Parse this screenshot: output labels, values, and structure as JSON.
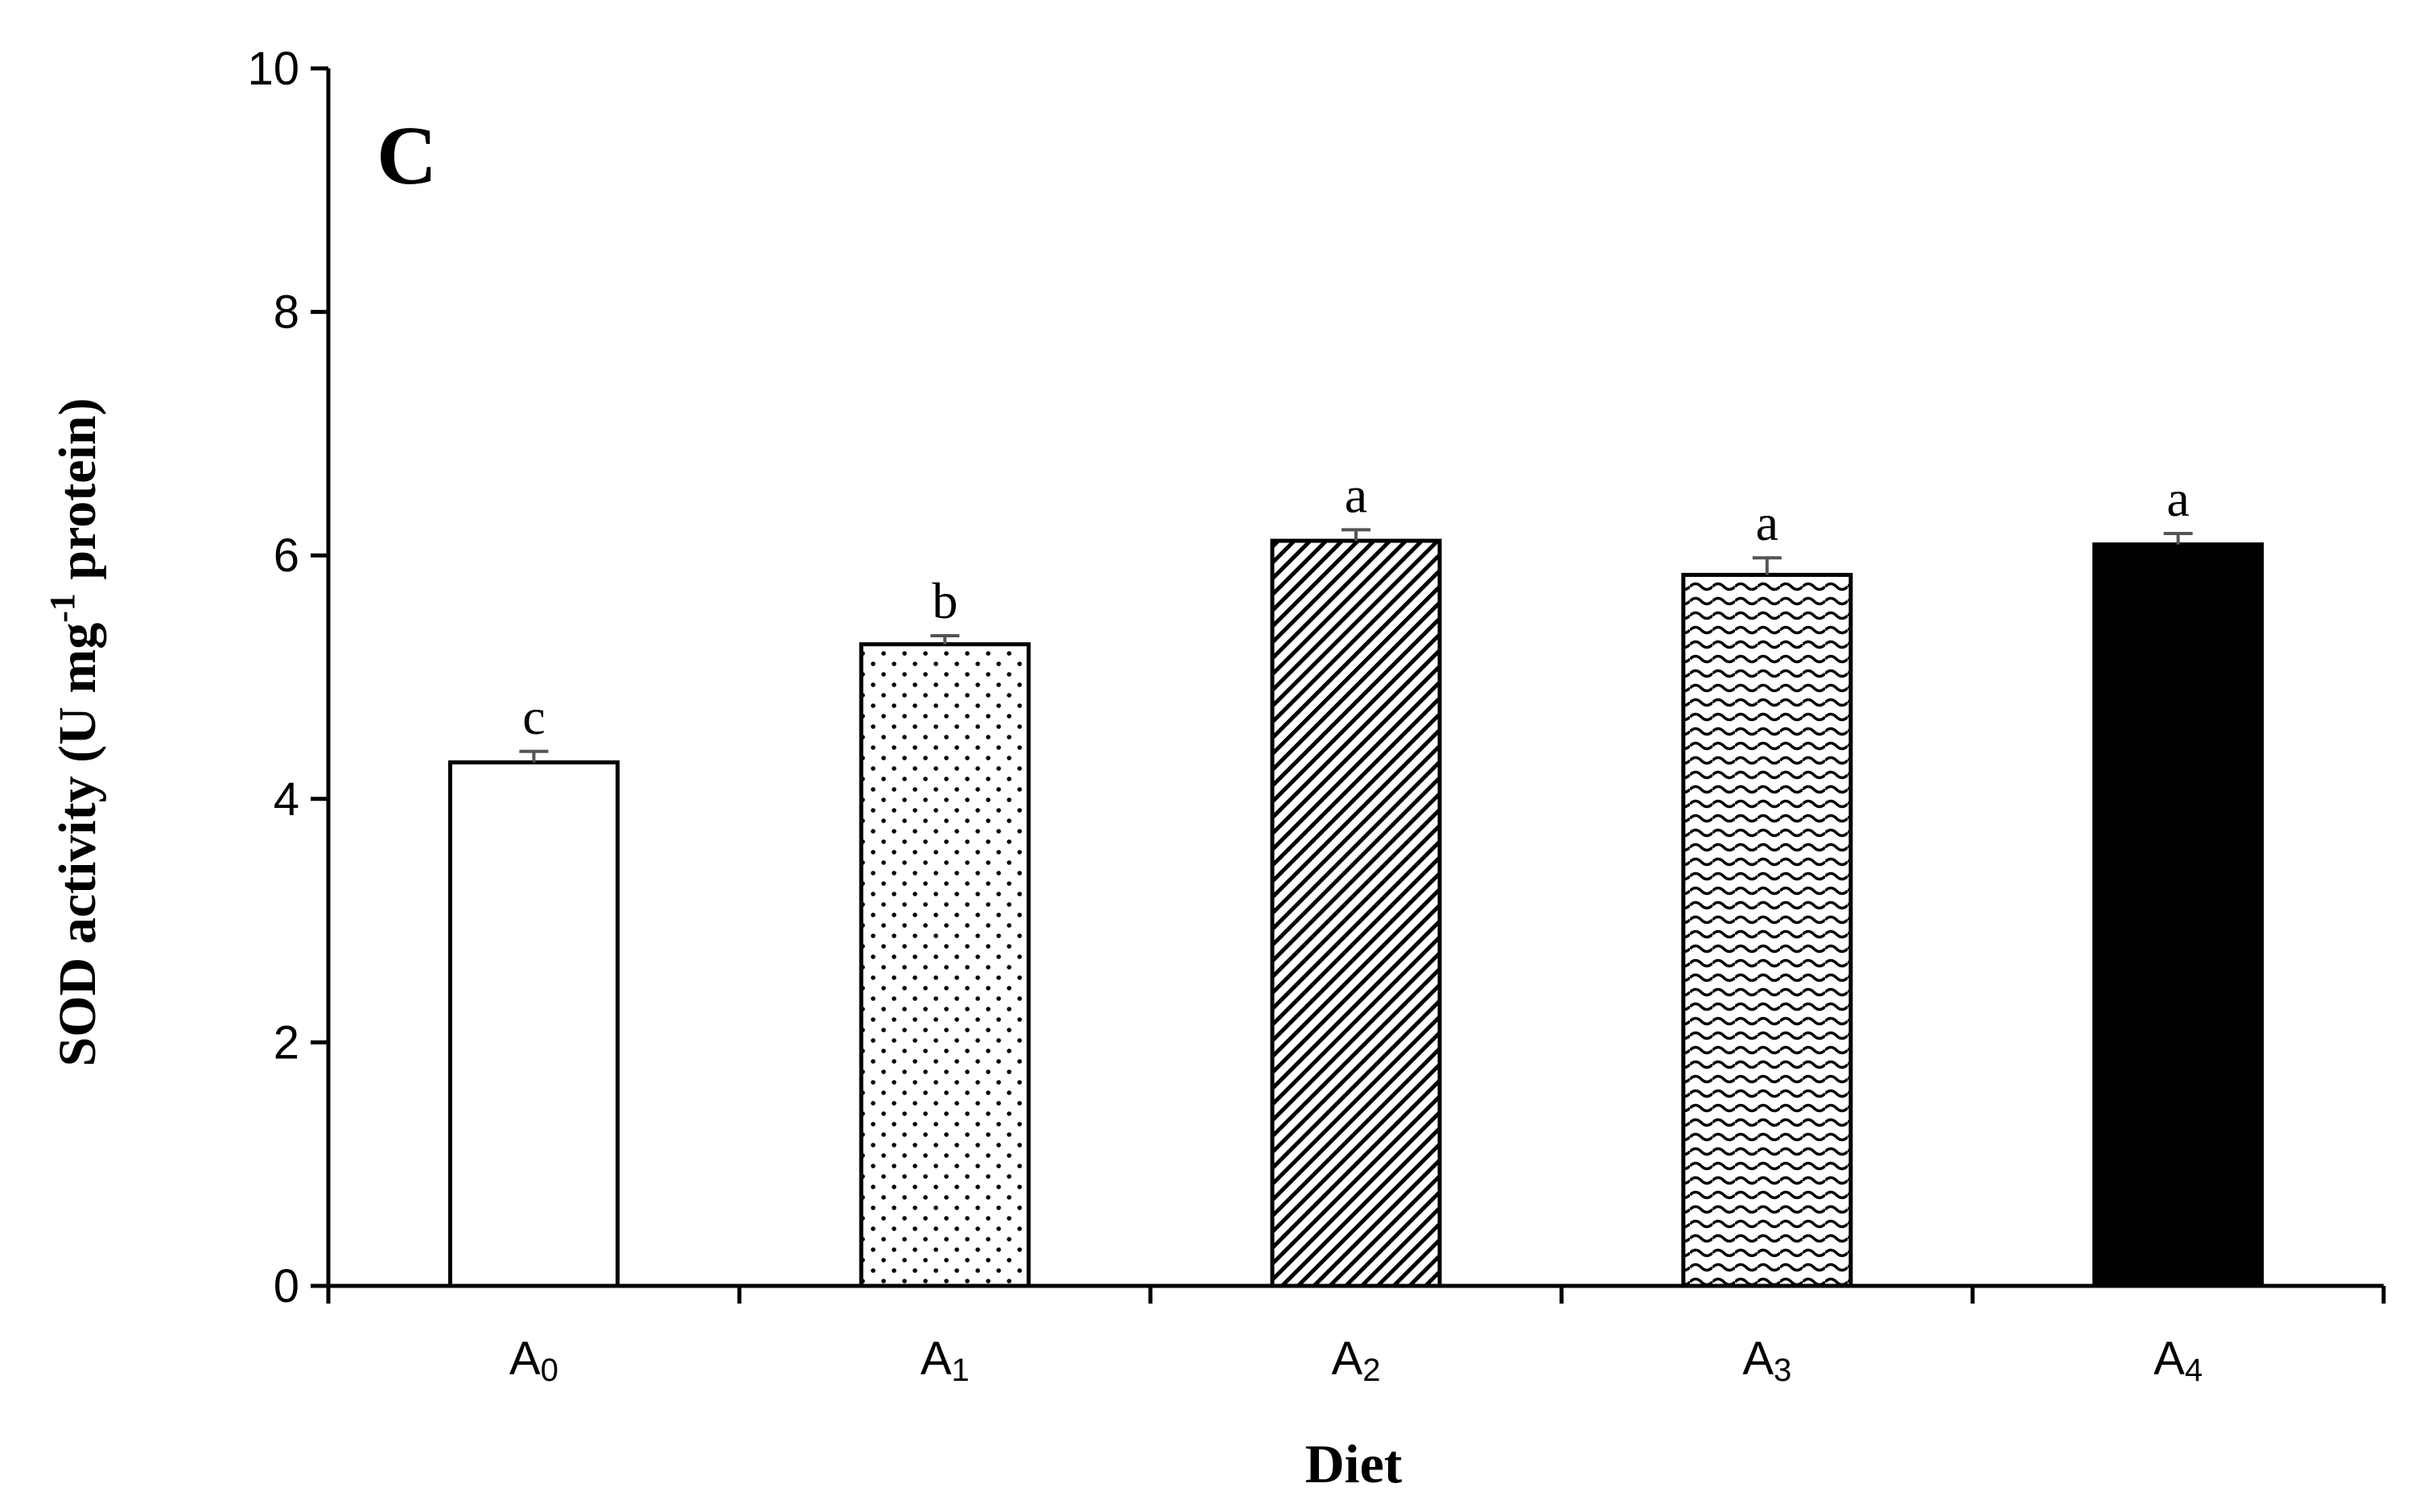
{
  "chart_data": {
    "type": "bar",
    "panel_label": "C",
    "title": "",
    "xlabel": "Diet",
    "ylabel_main": "SOD activity (U mg",
    "ylabel_sup": "-1",
    "ylabel_end": " protein)",
    "ylim": [
      0,
      10
    ],
    "yticks": [
      0,
      2,
      4,
      6,
      8,
      10
    ],
    "categories": [
      {
        "base": "A",
        "sub": "0"
      },
      {
        "base": "A",
        "sub": "1"
      },
      {
        "base": "A",
        "sub": "2"
      },
      {
        "base": "A",
        "sub": "3"
      },
      {
        "base": "A",
        "sub": "4"
      }
    ],
    "values": [
      4.3,
      5.27,
      6.12,
      5.84,
      6.09
    ],
    "errors": [
      0.09,
      0.07,
      0.09,
      0.14,
      0.09
    ],
    "significance": [
      "c",
      "b",
      "a",
      "a",
      "a"
    ],
    "fills": [
      "white",
      "dots",
      "diagonal",
      "wave",
      "black"
    ]
  }
}
